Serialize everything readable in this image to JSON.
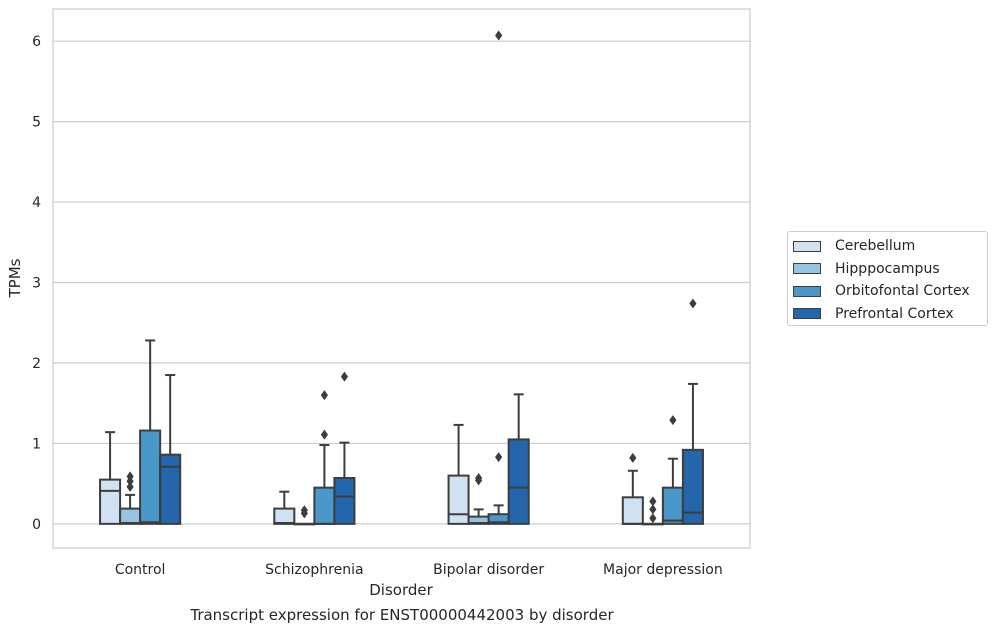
{
  "chart_data": {
    "type": "box",
    "title": "",
    "caption": "Transcript expression for ENST00000442003 by disorder",
    "xlabel": "Disorder",
    "ylabel": "TPMs",
    "ylim": [
      -0.3,
      6.4
    ],
    "yticks": [
      0,
      1,
      2,
      3,
      4,
      5,
      6
    ],
    "grid": "horizontal",
    "legend_position": "right",
    "categories": [
      "Control",
      "Schizophrenia",
      "Bipolar disorder",
      "Major depression"
    ],
    "series": [
      {
        "name": "Cerebellum",
        "color": "#d0e1f2",
        "boxes": [
          {
            "whislo": 0,
            "q1": 0,
            "med": 0.41,
            "q3": 0.55,
            "whishi": 1.14,
            "fliers": []
          },
          {
            "whislo": 0,
            "q1": 0,
            "med": 0.01,
            "q3": 0.19,
            "whishi": 0.4,
            "fliers": []
          },
          {
            "whislo": 0,
            "q1": 0,
            "med": 0.12,
            "q3": 0.6,
            "whishi": 1.23,
            "fliers": []
          },
          {
            "whislo": 0,
            "q1": 0,
            "med": 0.0,
            "q3": 0.33,
            "whishi": 0.66,
            "fliers": [
              0.82
            ]
          }
        ]
      },
      {
        "name": "Hipppocampus",
        "color": "#94c4df",
        "boxes": [
          {
            "whislo": 0,
            "q1": 0,
            "med": 0.01,
            "q3": 0.19,
            "whishi": 0.36,
            "fliers": [
              0.46,
              0.53,
              0.59
            ]
          },
          {
            "whislo": 0,
            "q1": 0,
            "med": 0.0,
            "q3": 0.0,
            "whishi": 0.0,
            "fliers": [
              0.13,
              0.17
            ]
          },
          {
            "whislo": 0,
            "q1": 0,
            "med": 0.01,
            "q3": 0.09,
            "whishi": 0.18,
            "fliers": [
              0.54,
              0.57
            ]
          },
          {
            "whislo": 0,
            "q1": 0,
            "med": 0.0,
            "q3": 0.0,
            "whishi": 0.0,
            "fliers": [
              0.07,
              0.18,
              0.28
            ]
          }
        ]
      },
      {
        "name": "Orbitofontal Cortex",
        "color": "#4a98c9",
        "boxes": [
          {
            "whislo": 0,
            "q1": 0,
            "med": 0.02,
            "q3": 1.16,
            "whishi": 2.28,
            "fliers": []
          },
          {
            "whislo": 0,
            "q1": 0,
            "med": 0.0,
            "q3": 0.45,
            "whishi": 0.98,
            "fliers": [
              1.11,
              1.6
            ]
          },
          {
            "whislo": 0,
            "q1": 0,
            "med": 0.02,
            "q3": 0.12,
            "whishi": 0.23,
            "fliers": [
              0.83,
              6.07
            ]
          },
          {
            "whislo": 0,
            "q1": 0,
            "med": 0.04,
            "q3": 0.45,
            "whishi": 0.81,
            "fliers": [
              1.29
            ]
          }
        ]
      },
      {
        "name": "Prefrontal Cortex",
        "color": "#2366ac",
        "boxes": [
          {
            "whislo": 0,
            "q1": 0,
            "med": 0.71,
            "q3": 0.86,
            "whishi": 1.85,
            "fliers": []
          },
          {
            "whislo": 0,
            "q1": 0,
            "med": 0.34,
            "q3": 0.57,
            "whishi": 1.01,
            "fliers": [
              1.83
            ]
          },
          {
            "whislo": 0,
            "q1": 0,
            "med": 0.45,
            "q3": 1.05,
            "whishi": 1.61,
            "fliers": []
          },
          {
            "whislo": 0,
            "q1": 0,
            "med": 0.14,
            "q3": 0.92,
            "whishi": 1.74,
            "fliers": [
              2.74
            ]
          }
        ]
      }
    ]
  }
}
